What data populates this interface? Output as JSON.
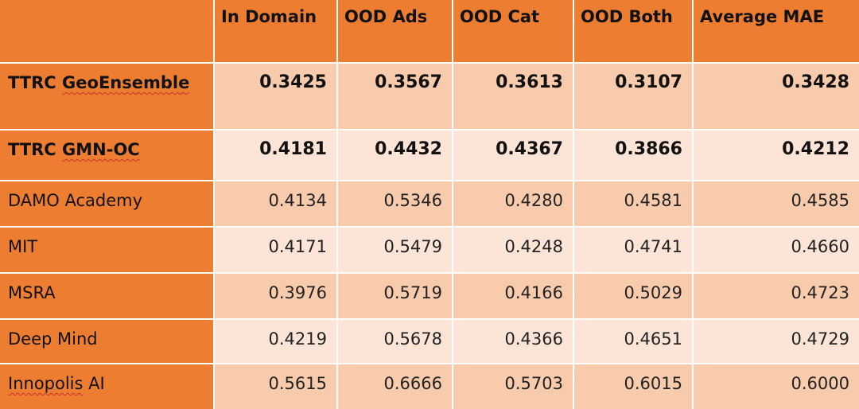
{
  "chart_data": {
    "type": "table",
    "columns": [
      "",
      "In Domain",
      "OOD Ads",
      "OOD Cat",
      "OOD Both",
      "Average MAE"
    ],
    "rows": [
      {
        "name": "TTRC GeoEnsemble",
        "values": [
          "0.3425",
          "0.3567",
          "0.3613",
          "0.3107",
          "0.3428"
        ],
        "bold": true
      },
      {
        "name": "TTRC GMN-OC",
        "values": [
          "0.4181",
          "0.4432",
          "0.4367",
          "0.3866",
          "0.4212"
        ],
        "bold": true
      },
      {
        "name": "DAMO Academy",
        "values": [
          "0.4134",
          "0.5346",
          "0.4280",
          "0.4581",
          "0.4585"
        ],
        "bold": false
      },
      {
        "name": "MIT",
        "values": [
          "0.4171",
          "0.5479",
          "0.4248",
          "0.4741",
          "0.4660"
        ],
        "bold": false
      },
      {
        "name": "MSRA",
        "values": [
          "0.3976",
          "0.5719",
          "0.4166",
          "0.5029",
          "0.4723"
        ],
        "bold": false
      },
      {
        "name": "Deep Mind",
        "values": [
          "0.4219",
          "0.5678",
          "0.4366",
          "0.4651",
          "0.4729"
        ],
        "bold": false
      },
      {
        "name": "Innopolis AI",
        "values": [
          "0.5615",
          "0.6666",
          "0.5703",
          "0.6015",
          "0.6000"
        ],
        "bold": false
      }
    ]
  },
  "colors": {
    "header": "#ED7D31",
    "row_dark": "#F8CBAD",
    "row_light": "#FCE4D6"
  }
}
